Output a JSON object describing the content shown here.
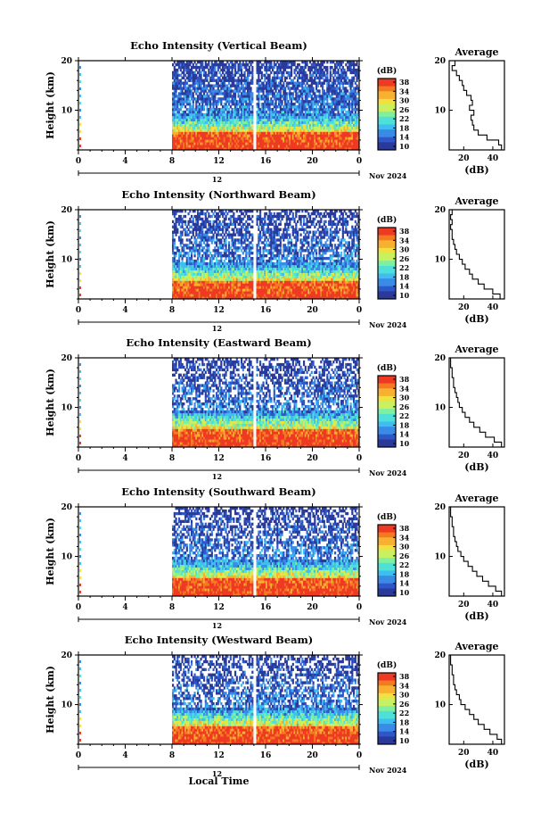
{
  "colors": {
    "colormap": [
      "#2a3a9a",
      "#2f57c8",
      "#3a8be6",
      "#3fbef0",
      "#4fe0d8",
      "#7ff0a0",
      "#c8f060",
      "#f0e040",
      "#f8b030",
      "#f47a22",
      "#ee3a22"
    ],
    "gap": "#ffffff",
    "axes": "#000000"
  },
  "shared": {
    "y_label": "Height (km)",
    "y_ticks": [
      "20",
      "10"
    ],
    "x_ticks": [
      "0",
      "4",
      "8",
      "12",
      "16",
      "20",
      "0"
    ],
    "date_label": "12",
    "month_label": "Nov 2024",
    "colorbar_unit": "(dB)",
    "colorbar_ticks": [
      "38",
      "34",
      "30",
      "26",
      "22",
      "18",
      "14",
      "10"
    ],
    "avg_title": "Average",
    "avg_xlabel": "(dB)",
    "avg_y_ticks": [
      "20",
      "10"
    ],
    "x_axis_label": "Local Time"
  },
  "chart_data": [
    {
      "type": "heatmap",
      "title": "Echo Intensity (Vertical Beam)",
      "ylabel": "Height (km)",
      "x_range_hours": [
        0,
        24
      ],
      "y_range_km": [
        2,
        20
      ],
      "data_start_hour": 8,
      "data_gap_hour": 15,
      "colorbar": {
        "unit": "(dB)",
        "range": [
          10,
          38
        ]
      },
      "average_profile": {
        "title": "Average",
        "xlabel": "(dB)",
        "x_ticks": [
          "20",
          "40"
        ],
        "x_range": [
          10,
          48
        ],
        "heights_km": [
          2,
          3,
          4,
          5,
          6,
          7,
          8,
          9,
          10,
          11,
          12,
          13,
          14,
          15,
          16,
          17,
          18,
          19,
          20
        ],
        "values_db": [
          46,
          44,
          36,
          30,
          27,
          26,
          25,
          27,
          24,
          26,
          25,
          22,
          20,
          19,
          17,
          15,
          12,
          14,
          13
        ]
      }
    },
    {
      "type": "heatmap",
      "title": "Echo Intensity (Northward Beam)",
      "ylabel": "Height (km)",
      "x_range_hours": [
        0,
        24
      ],
      "y_range_km": [
        2,
        20
      ],
      "data_start_hour": 8,
      "data_gap_hour": 15,
      "colorbar": {
        "unit": "(dB)",
        "range": [
          10,
          38
        ]
      },
      "average_profile": {
        "title": "Average",
        "xlabel": "(dB)",
        "x_ticks": [
          "20",
          "40"
        ],
        "x_range": [
          10,
          48
        ],
        "heights_km": [
          2,
          3,
          4,
          5,
          6,
          7,
          8,
          9,
          10,
          11,
          12,
          13,
          14,
          15,
          16,
          17,
          18,
          19,
          20
        ],
        "values_db": [
          45,
          40,
          34,
          30,
          26,
          24,
          21,
          19,
          17,
          15,
          14,
          13,
          12,
          12,
          11,
          12,
          11,
          12,
          11
        ]
      }
    },
    {
      "type": "heatmap",
      "title": "Echo Intensity (Eastward Beam)",
      "ylabel": "Height (km)",
      "x_range_hours": [
        0,
        24
      ],
      "y_range_km": [
        2,
        20
      ],
      "data_start_hour": 8,
      "data_gap_hour": 15,
      "colorbar": {
        "unit": "(dB)",
        "range": [
          10,
          38
        ]
      },
      "average_profile": {
        "title": "Average",
        "xlabel": "(dB)",
        "x_ticks": [
          "20",
          "40"
        ],
        "x_range": [
          10,
          48
        ],
        "heights_km": [
          2,
          3,
          4,
          5,
          6,
          7,
          8,
          9,
          10,
          11,
          12,
          13,
          14,
          15,
          16,
          17,
          18,
          19,
          20
        ],
        "values_db": [
          46,
          41,
          35,
          31,
          27,
          24,
          21,
          19,
          17,
          16,
          15,
          14,
          13,
          13,
          12,
          12,
          11,
          11,
          11
        ]
      }
    },
    {
      "type": "heatmap",
      "title": "Echo Intensity (Southward Beam)",
      "ylabel": "Height (km)",
      "x_range_hours": [
        0,
        24
      ],
      "y_range_km": [
        2,
        20
      ],
      "data_start_hour": 8,
      "data_gap_hour": 15,
      "colorbar": {
        "unit": "(dB)",
        "range": [
          10,
          38
        ]
      },
      "average_profile": {
        "title": "Average",
        "xlabel": "(dB)",
        "x_ticks": [
          "20",
          "40"
        ],
        "x_range": [
          10,
          48
        ],
        "heights_km": [
          2,
          3,
          4,
          5,
          6,
          7,
          8,
          9,
          10,
          11,
          12,
          13,
          14,
          15,
          16,
          17,
          18,
          19,
          20
        ],
        "values_db": [
          46,
          42,
          37,
          33,
          29,
          26,
          23,
          20,
          18,
          16,
          15,
          14,
          13,
          13,
          12,
          12,
          11,
          11,
          11
        ]
      }
    },
    {
      "type": "heatmap",
      "title": "Echo Intensity (Westward Beam)",
      "ylabel": "Height (km)",
      "x_range_hours": [
        0,
        24
      ],
      "y_range_km": [
        2,
        20
      ],
      "data_start_hour": 8,
      "data_gap_hour": 15,
      "colorbar": {
        "unit": "(dB)",
        "range": [
          10,
          38
        ]
      },
      "average_profile": {
        "title": "Average",
        "xlabel": "(dB)",
        "x_ticks": [
          "20",
          "40"
        ],
        "x_range": [
          10,
          48
        ],
        "heights_km": [
          2,
          3,
          4,
          5,
          6,
          7,
          8,
          9,
          10,
          11,
          12,
          13,
          14,
          15,
          16,
          17,
          18,
          19,
          20
        ],
        "values_db": [
          46,
          43,
          38,
          34,
          30,
          27,
          24,
          21,
          18,
          17,
          15,
          14,
          13,
          13,
          12,
          12,
          11,
          11,
          11
        ]
      }
    }
  ]
}
